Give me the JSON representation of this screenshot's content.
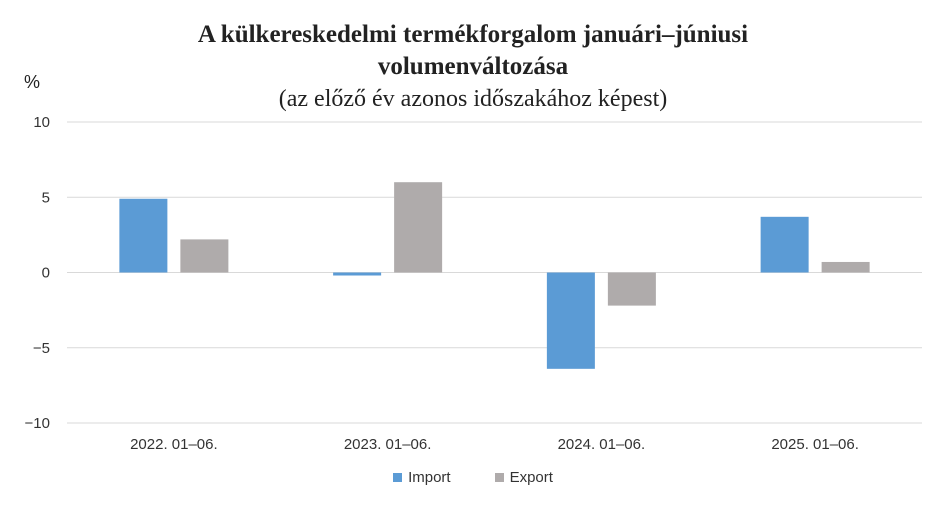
{
  "chart_data": {
    "type": "bar",
    "title": "A külkereskedelmi termékforgalom januári–júniusi volumenváltozása",
    "title_line1": "A külkereskedelmi termékforgalom januári–júniusi",
    "title_line2": "volumenváltozása",
    "subtitle": "(az előző év azonos időszakához képest)",
    "ylabel": "%",
    "ylim": [
      -10,
      10
    ],
    "yticks": [
      10,
      5,
      0,
      -5,
      -10
    ],
    "ytick_labels": [
      "10",
      "5",
      "0",
      "−5",
      "−10"
    ],
    "categories": [
      "2022. 01–06.",
      "2023. 01–06.",
      "2024. 01–06.",
      "2025. 01–06."
    ],
    "series": [
      {
        "name": "Import",
        "color": "#5b9bd5",
        "values": [
          4.9,
          -0.2,
          -6.4,
          3.7
        ]
      },
      {
        "name": "Export",
        "color": "#afabab",
        "values": [
          2.2,
          6.0,
          -2.2,
          0.7
        ]
      }
    ],
    "grid": true,
    "legend_position": "bottom"
  }
}
